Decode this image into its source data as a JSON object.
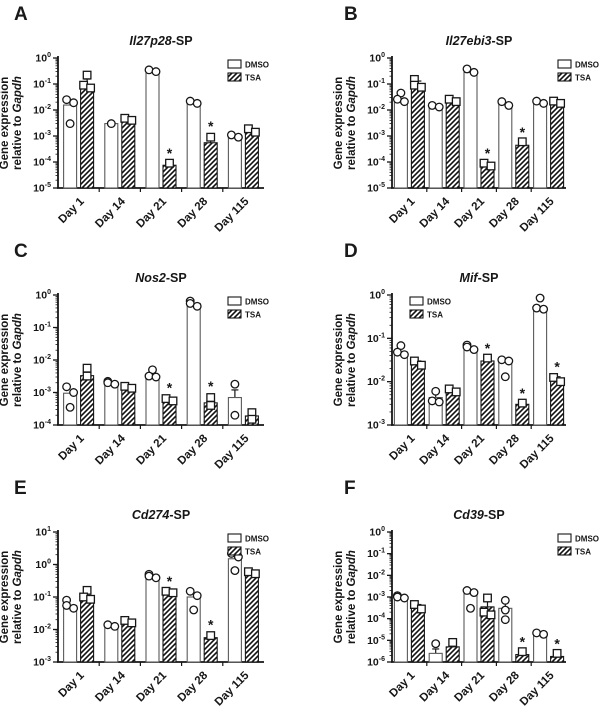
{
  "figure": {
    "ylabel_line1": "Gene expression",
    "ylabel_line2_prefix": "relative to ",
    "ylabel_line2_italic": "Gapdh",
    "legend": {
      "dmso": "DMSO",
      "tsa": "TSA"
    },
    "colors": {
      "ink": "#161616",
      "bar_outline": "#5a5a5a",
      "hatch": "#111111",
      "background": "#ffffff"
    }
  },
  "chart_data": [
    {
      "panel": "A",
      "type": "bar",
      "yscale": "log",
      "title_italic": "Il27p28",
      "title_suffix": "-SP",
      "ylim": [
        1e-05,
        1
      ],
      "legend_pos": "right",
      "grid": false,
      "categories": [
        "Day 1",
        "Day 14",
        "Day 21",
        "Day 28",
        "Day 115"
      ],
      "series": [
        {
          "name": "DMSO",
          "marker": "circle",
          "values": [
            0.0155,
            0.003,
            0.3,
            0.019,
            0.00095
          ],
          "errors": [
            null,
            null,
            null,
            null,
            null
          ],
          "points": [
            [
              0.025,
              0.019,
              0.003
            ],
            [
              0.003
            ],
            [
              0.35,
              0.3
            ],
            [
              0.022,
              0.018
            ],
            [
              0.0011,
              0.0009
            ]
          ],
          "sig": [
            false,
            false,
            false,
            false,
            false
          ]
        },
        {
          "name": "TSA",
          "marker": "square",
          "values": [
            0.095,
            0.0042,
            7.5e-05,
            0.00055,
            0.0014
          ],
          "errors": [
            0.155,
            null,
            null,
            0.001,
            null
          ],
          "points": [
            [
              0.22,
              0.09,
              0.07
            ],
            [
              0.0048,
              0.004
            ],
            [
              9e-05
            ],
            [
              0.0009
            ],
            [
              0.0019,
              0.0014
            ]
          ],
          "sig": [
            false,
            false,
            true,
            true,
            false
          ]
        }
      ]
    },
    {
      "panel": "B",
      "type": "bar",
      "yscale": "log",
      "title_italic": "Il27ebi3",
      "title_suffix": "-SP",
      "ylim": [
        1e-05,
        1
      ],
      "legend_pos": "far-right",
      "grid": false,
      "categories": [
        "Day 1",
        "Day 14",
        "Day 21",
        "Day 28",
        "Day 115"
      ],
      "series": [
        {
          "name": "DMSO",
          "marker": "circle",
          "values": [
            0.023,
            0.0135,
            0.28,
            0.016,
            0.019
          ],
          "errors": [
            null,
            null,
            null,
            null,
            null
          ],
          "points": [
            [
              0.045,
              0.026,
              0.021
            ],
            [
              0.015,
              0.013
            ],
            [
              0.38,
              0.28
            ],
            [
              0.021,
              0.015
            ],
            [
              0.022,
              0.018
            ]
          ],
          "sig": [
            false,
            false,
            false,
            false,
            false
          ]
        },
        {
          "name": "TSA",
          "marker": "square",
          "values": [
            0.095,
            0.021,
            7.2e-05,
            0.00044,
            0.019
          ],
          "errors": [
            0.13,
            0.025,
            null,
            0.00058,
            null
          ],
          "points": [
            [
              0.15,
              0.09,
              0.075
            ],
            [
              0.026,
              0.021
            ],
            [
              9e-05,
              7e-05
            ],
            [
              0.0006
            ],
            [
              0.022,
              0.018
            ]
          ],
          "sig": [
            false,
            false,
            true,
            true,
            false
          ]
        }
      ]
    },
    {
      "panel": "C",
      "type": "bar",
      "yscale": "log",
      "title_italic": "Nos2",
      "title_suffix": "-SP",
      "ylim": [
        0.0001,
        1
      ],
      "legend_pos": "right",
      "grid": false,
      "categories": [
        "Day 1",
        "Day 14",
        "Day 21",
        "Day 28",
        "Day 115"
      ],
      "series": [
        {
          "name": "DMSO",
          "marker": "circle",
          "values": [
            0.00095,
            0.00195,
            0.0028,
            0.55,
            0.0007
          ],
          "errors": [
            null,
            null,
            0.004,
            null,
            0.0012
          ],
          "points": [
            [
              0.0015,
              0.001,
              0.00035
            ],
            [
              0.0022,
              0.002,
              0.0018
            ],
            [
              0.005,
              0.0032,
              0.003
            ],
            [
              0.65,
              0.55,
              0.45
            ],
            [
              0.0018,
              0.0002
            ]
          ],
          "sig": [
            false,
            false,
            false,
            false,
            false
          ]
        },
        {
          "name": "TSA",
          "marker": "square",
          "values": [
            0.0033,
            0.0014,
            0.00059,
            0.00048,
            0.00019
          ],
          "errors": [
            null,
            null,
            0.0007,
            0.00078,
            null
          ],
          "points": [
            [
              0.0056,
              0.0032
            ],
            [
              0.00155,
              0.00135
            ],
            [
              0.00065,
              0.00055
            ],
            [
              0.0007,
              0.0004
            ],
            [
              0.00024,
              0.00015
            ]
          ],
          "sig": [
            false,
            false,
            true,
            true,
            false
          ]
        }
      ]
    },
    {
      "panel": "D",
      "type": "bar",
      "yscale": "log",
      "title_italic": "Mif",
      "title_suffix": "-SP",
      "ylim": [
        0.001,
        1
      ],
      "legend_pos": "left",
      "grid": false,
      "categories": [
        "Day 1",
        "Day 14",
        "Day 21",
        "Day 28",
        "Day 115"
      ],
      "series": [
        {
          "name": "DMSO",
          "marker": "circle",
          "values": [
            0.048,
            0.0043,
            0.063,
            0.028,
            0.49
          ],
          "errors": [
            null,
            0.006,
            null,
            null,
            null
          ],
          "points": [
            [
              0.068,
              0.048,
              0.042
            ],
            [
              0.006,
              0.0036,
              0.0034
            ],
            [
              0.07,
              0.063,
              0.055
            ],
            [
              0.032,
              0.03,
              0.013
            ],
            [
              0.85,
              0.5,
              0.47
            ]
          ],
          "sig": [
            false,
            false,
            false,
            false,
            false
          ]
        },
        {
          "name": "TSA",
          "marker": "square",
          "values": [
            0.025,
            0.006,
            0.03,
            0.003,
            0.011
          ],
          "errors": [
            0.03,
            0.007,
            0.035,
            null,
            0.013
          ],
          "points": [
            [
              0.03,
              0.024
            ],
            [
              0.0068,
              0.0058
            ],
            [
              0.035
            ],
            [
              0.0032
            ],
            [
              0.0125,
              0.01
            ]
          ],
          "sig": [
            false,
            false,
            true,
            true,
            true
          ]
        }
      ]
    },
    {
      "panel": "E",
      "type": "bar",
      "yscale": "log",
      "title_italic": "Cd274",
      "title_suffix": "-SP",
      "ylim": [
        0.001,
        10
      ],
      "legend_pos": "right",
      "grid": false,
      "categories": [
        "Day 1",
        "Day 14",
        "Day 21",
        "Day 28",
        "Day 115"
      ],
      "series": [
        {
          "name": "DMSO",
          "marker": "circle",
          "values": [
            0.055,
            0.013,
            0.43,
            0.1,
            1.5
          ],
          "errors": [
            null,
            null,
            null,
            null,
            null
          ],
          "points": [
            [
              0.08,
              0.055,
              0.045
            ],
            [
              0.014,
              0.0125
            ],
            [
              0.5,
              0.44,
              0.39
            ],
            [
              0.15,
              0.11,
              0.04
            ],
            [
              2.2,
              1.7,
              0.65
            ]
          ],
          "sig": [
            false,
            false,
            false,
            false,
            false
          ]
        },
        {
          "name": "TSA",
          "marker": "square",
          "values": [
            0.105,
            0.017,
            0.13,
            0.0056,
            0.55
          ],
          "errors": [
            null,
            0.019,
            0.155,
            0.007,
            null
          ],
          "points": [
            [
              0.16,
              0.1,
              0.085
            ],
            [
              0.019,
              0.016
            ],
            [
              0.15,
              0.135
            ],
            [
              0.0065
            ],
            [
              0.6,
              0.52
            ]
          ],
          "sig": [
            false,
            false,
            true,
            true,
            false
          ]
        }
      ]
    },
    {
      "panel": "F",
      "type": "bar",
      "yscale": "log",
      "title_italic": "Cd39",
      "title_suffix": "-SP",
      "ylim": [
        1e-06,
        1
      ],
      "legend_pos": "far-right",
      "grid": false,
      "categories": [
        "Day 1",
        "Day 14",
        "Day 21",
        "Day 28",
        "Day 115"
      ],
      "series": [
        {
          "name": "DMSO",
          "marker": "circle",
          "values": [
            0.001,
            2.5e-06,
            0.0014,
            0.0003,
            1.8e-05
          ],
          "errors": [
            null,
            4e-06,
            null,
            0.00055,
            null
          ],
          "points": [
            [
              0.00115,
              0.001,
              0.0009
            ],
            [
              7e-06
            ],
            [
              0.002,
              0.0016,
              0.0003
            ],
            [
              0.0007,
              0.00025,
              9e-05
            ],
            [
              2.2e-05,
              1.9e-05
            ]
          ],
          "sig": [
            false,
            false,
            false,
            false,
            false
          ]
        },
        {
          "name": "TSA",
          "marker": "square",
          "values": [
            0.0003,
            5e-06,
            0.00035,
            2.2e-06,
            1.8e-06
          ],
          "errors": [
            0.00045,
            7e-06,
            0.0008,
            3e-06,
            2.5e-06
          ],
          "points": [
            [
              0.00045,
              0.00028
            ],
            [
              8e-06
            ],
            [
              0.0009,
              0.0002,
              0.00015
            ],
            [
              3e-06
            ],
            [
              2.5e-06
            ]
          ],
          "sig": [
            false,
            false,
            false,
            true,
            true
          ]
        }
      ]
    }
  ]
}
